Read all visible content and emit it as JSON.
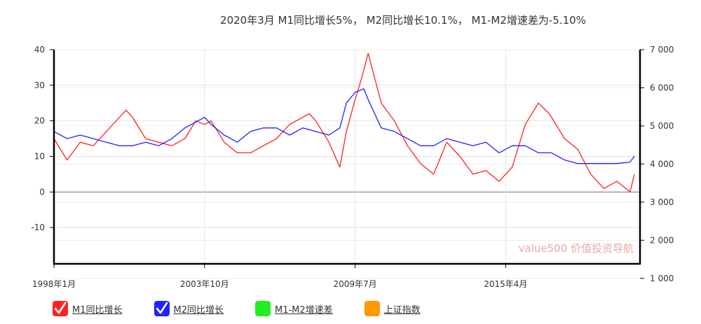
{
  "title": "2020年3月    M1同比增长5%，  M2同比增长10.1%，  M1-M2增速差为-5.10%",
  "watermark": "value500 价值投资导航",
  "legend": [
    {
      "label": "M1同比增长",
      "color": "#ff2222",
      "checked": true,
      "icon": "check-icon"
    },
    {
      "label": "M2同比增长",
      "color": "#2222ff",
      "checked": true,
      "icon": "check-icon"
    },
    {
      "label": "M1-M2增速差",
      "color": "#22ee22",
      "checked": false,
      "icon": ""
    },
    {
      "label": "上证指数",
      "color": "#ff9900",
      "checked": false,
      "icon": ""
    }
  ],
  "chart_data": {
    "type": "line",
    "x_range": [
      "1998-01",
      "2020-03"
    ],
    "x_ticks": [
      {
        "date": "1998-01",
        "label": "1998年1月"
      },
      {
        "date": "2003-10",
        "label": "2003年10月"
      },
      {
        "date": "2009-07",
        "label": "2009年7月"
      },
      {
        "date": "2015-04",
        "label": "2015年4月"
      }
    ],
    "y_left": {
      "min": -20,
      "max": 40,
      "ticks": [
        "40",
        "30",
        "20",
        "10",
        "0",
        "-10"
      ],
      "tick_values": [
        40,
        30,
        20,
        10,
        0,
        -10
      ]
    },
    "y_right": {
      "min": 1400,
      "max": 7000,
      "ticks": [
        "7 000",
        "6 000",
        "5 000",
        "4 000",
        "3 000",
        "2 000",
        "1 000"
      ],
      "tick_values": [
        7000,
        6000,
        5000,
        4000,
        3000,
        2000,
        1000
      ]
    },
    "grid": true,
    "series": [
      {
        "name": "M1同比增长",
        "color": "#ff2222",
        "axis": "left",
        "points": [
          [
            "1998-01",
            15
          ],
          [
            "1998-07",
            9
          ],
          [
            "1999-01",
            14
          ],
          [
            "1999-07",
            13
          ],
          [
            "2000-01",
            17
          ],
          [
            "2000-07",
            21
          ],
          [
            "2000-10",
            23
          ],
          [
            "2001-01",
            21
          ],
          [
            "2001-07",
            15
          ],
          [
            "2002-01",
            14
          ],
          [
            "2002-07",
            13
          ],
          [
            "2003-01",
            15
          ],
          [
            "2003-06",
            20
          ],
          [
            "2003-10",
            19
          ],
          [
            "2004-01",
            20
          ],
          [
            "2004-07",
            14
          ],
          [
            "2005-01",
            11
          ],
          [
            "2005-07",
            11
          ],
          [
            "2006-01",
            13
          ],
          [
            "2006-07",
            15
          ],
          [
            "2007-01",
            19
          ],
          [
            "2007-07",
            21
          ],
          [
            "2007-10",
            22
          ],
          [
            "2008-01",
            20
          ],
          [
            "2008-07",
            14
          ],
          [
            "2008-12",
            7
          ],
          [
            "2009-03",
            17
          ],
          [
            "2009-07",
            26
          ],
          [
            "2009-10",
            32
          ],
          [
            "2010-01",
            39
          ],
          [
            "2010-07",
            25
          ],
          [
            "2011-01",
            20
          ],
          [
            "2011-07",
            13
          ],
          [
            "2012-01",
            8
          ],
          [
            "2012-07",
            5
          ],
          [
            "2013-01",
            14
          ],
          [
            "2013-07",
            10
          ],
          [
            "2014-01",
            5
          ],
          [
            "2014-07",
            6
          ],
          [
            "2015-01",
            3
          ],
          [
            "2015-07",
            7
          ],
          [
            "2016-01",
            19
          ],
          [
            "2016-07",
            25
          ],
          [
            "2016-12",
            22
          ],
          [
            "2017-07",
            15
          ],
          [
            "2018-01",
            12
          ],
          [
            "2018-07",
            5
          ],
          [
            "2019-01",
            1
          ],
          [
            "2019-07",
            3
          ],
          [
            "2020-01",
            0
          ],
          [
            "2020-03",
            5
          ]
        ]
      },
      {
        "name": "M2同比增长",
        "color": "#2222ff",
        "axis": "left",
        "points": [
          [
            "1998-01",
            17
          ],
          [
            "1998-07",
            15
          ],
          [
            "1999-01",
            16
          ],
          [
            "1999-07",
            15
          ],
          [
            "2000-01",
            14
          ],
          [
            "2000-07",
            13
          ],
          [
            "2001-01",
            13
          ],
          [
            "2001-07",
            14
          ],
          [
            "2002-01",
            13
          ],
          [
            "2002-07",
            15
          ],
          [
            "2003-01",
            18
          ],
          [
            "2003-10",
            21
          ],
          [
            "2004-01",
            19
          ],
          [
            "2004-07",
            16
          ],
          [
            "2005-01",
            14
          ],
          [
            "2005-07",
            17
          ],
          [
            "2006-01",
            18
          ],
          [
            "2006-07",
            18
          ],
          [
            "2007-01",
            16
          ],
          [
            "2007-07",
            18
          ],
          [
            "2008-01",
            17
          ],
          [
            "2008-07",
            16
          ],
          [
            "2008-12",
            18
          ],
          [
            "2009-03",
            25
          ],
          [
            "2009-07",
            28
          ],
          [
            "2009-11",
            29
          ],
          [
            "2010-01",
            26
          ],
          [
            "2010-07",
            18
          ],
          [
            "2011-01",
            17
          ],
          [
            "2011-07",
            15
          ],
          [
            "2012-01",
            13
          ],
          [
            "2012-07",
            13
          ],
          [
            "2013-01",
            15
          ],
          [
            "2013-07",
            14
          ],
          [
            "2014-01",
            13
          ],
          [
            "2014-07",
            14
          ],
          [
            "2015-01",
            11
          ],
          [
            "2015-07",
            13
          ],
          [
            "2016-01",
            13
          ],
          [
            "2016-07",
            11
          ],
          [
            "2017-01",
            11
          ],
          [
            "2017-07",
            9
          ],
          [
            "2018-01",
            8
          ],
          [
            "2018-07",
            8
          ],
          [
            "2019-01",
            8
          ],
          [
            "2019-07",
            8
          ],
          [
            "2020-01",
            8.4
          ],
          [
            "2020-03",
            10.1
          ]
        ]
      }
    ]
  }
}
